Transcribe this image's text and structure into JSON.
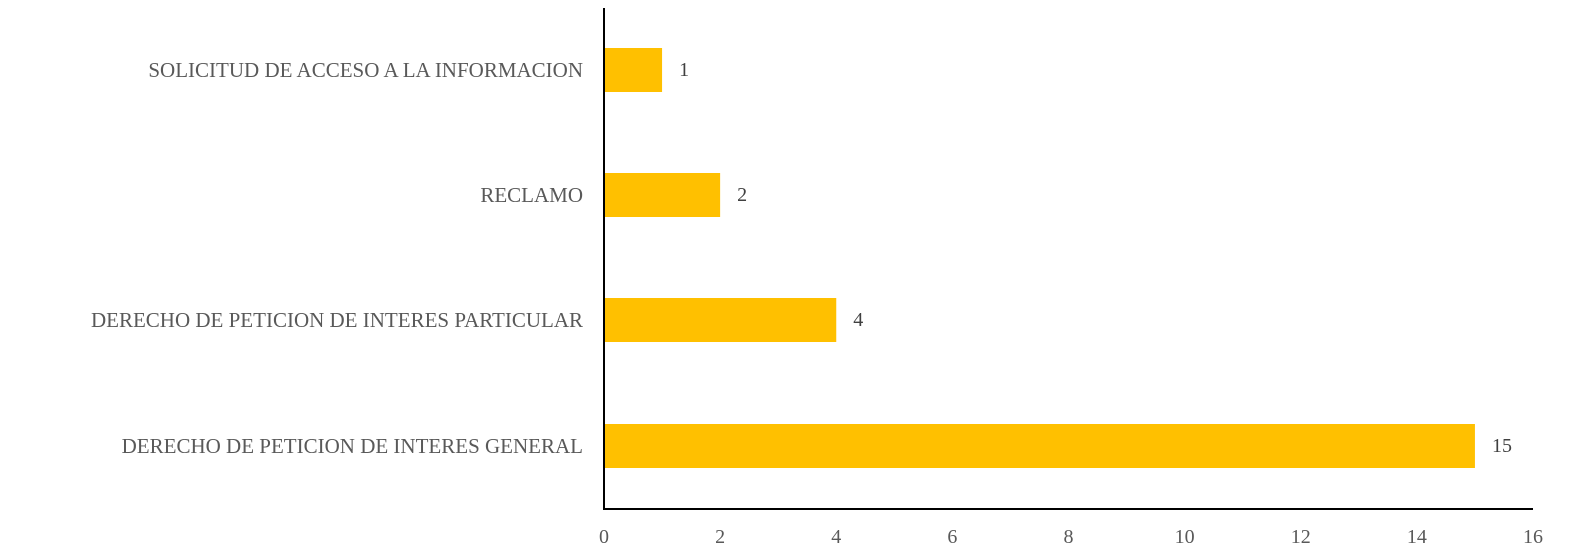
{
  "chart_data": {
    "type": "bar",
    "orientation": "horizontal",
    "categories": [
      "SOLICITUD DE ACCESO A LA INFORMACION",
      "RECLAMO",
      "DERECHO DE PETICION DE INTERES PARTICULAR",
      "DERECHO DE PETICION DE INTERES GENERAL"
    ],
    "values": [
      1,
      2,
      4,
      15
    ],
    "data_labels": [
      "1",
      "2",
      "4",
      "15"
    ],
    "xlim": [
      0,
      16
    ],
    "x_ticks": [
      0,
      2,
      4,
      6,
      8,
      10,
      12,
      14,
      16
    ],
    "x_tick_labels": [
      "0",
      "2",
      "4",
      "6",
      "8",
      "10",
      "12",
      "14",
      "16"
    ],
    "title": "",
    "xlabel": "",
    "ylabel": "",
    "grid": false,
    "legend": "none",
    "bar_color": "#FFC000"
  }
}
